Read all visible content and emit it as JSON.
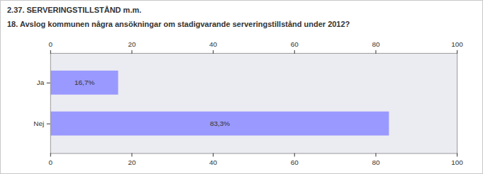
{
  "chart_data": {
    "type": "bar",
    "title": "2.37. SERVERINGSTILLSTÅND m.m.",
    "subtitle": "18. Avslog kommunen några ansökningar om stadigvarande serveringstillstånd under 2012?",
    "categories": [
      "Ja",
      "Nej"
    ],
    "values": [
      16.7,
      83.3
    ],
    "value_labels": [
      "16,7%",
      "83,3%"
    ],
    "color": "#9999ff",
    "orientation": "horizontal",
    "data_labels": true,
    "xlim": [
      0,
      100
    ],
    "xticks": [
      0,
      20,
      40,
      60,
      80,
      100
    ],
    "grid": false
  }
}
